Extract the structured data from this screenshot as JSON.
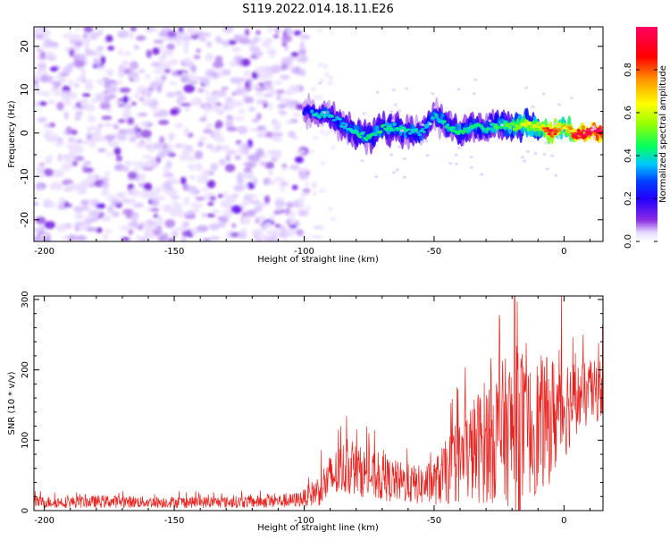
{
  "title": "S119.2022.014.18.11.E26",
  "chart_data": [
    {
      "type": "heatmap",
      "xlabel": "Height of straight line (km)",
      "ylabel": "Frequency (Hz)",
      "xlim": [
        -204,
        15
      ],
      "ylim": [
        -25,
        24.5
      ],
      "x_ticks": [
        -200,
        -150,
        -100,
        -50,
        0
      ],
      "y_ticks": [
        -20,
        -10,
        0,
        10,
        20
      ],
      "grid": false,
      "colorbar": {
        "label": "Normalized spectral amplitude",
        "range": [
          0.0,
          1.0
        ],
        "ticks": [
          0.0,
          0.2,
          0.4,
          0.6,
          0.8
        ],
        "tick_labels": [
          "0.0",
          "0.2",
          "0.4",
          "0.6",
          "0.8"
        ],
        "colormap": [
          "#e8ddff",
          "#8a2be2",
          "#3a00ff",
          "#0000ff",
          "#00c8ff",
          "#00ff60",
          "#9aff00",
          "#ffff00",
          "#ff9900",
          "#ff0000",
          "#ff0060"
        ]
      },
      "noise_region": {
        "x_range": [
          -204,
          -99
        ],
        "y_range": [
          -25,
          24.5
        ],
        "amplitude_range": [
          0.0,
          0.2
        ]
      },
      "signal_track": [
        {
          "x": -100,
          "y": 5,
          "amplitude": 0.15
        },
        {
          "x": -95,
          "y": 4.5,
          "amplitude": 0.3
        },
        {
          "x": -90,
          "y": 4,
          "amplitude": 0.3
        },
        {
          "x": -85,
          "y": 2,
          "amplitude": 0.3
        },
        {
          "x": -80,
          "y": 0,
          "amplitude": 0.35
        },
        {
          "x": -75,
          "y": -1,
          "amplitude": 0.35
        },
        {
          "x": -70,
          "y": 1,
          "amplitude": 0.35
        },
        {
          "x": -65,
          "y": 1.5,
          "amplitude": 0.35
        },
        {
          "x": -60,
          "y": 0.5,
          "amplitude": 0.35
        },
        {
          "x": -55,
          "y": 0,
          "amplitude": 0.3
        },
        {
          "x": -50,
          "y": 4,
          "amplitude": 0.3
        },
        {
          "x": -45,
          "y": 2,
          "amplitude": 0.35
        },
        {
          "x": -40,
          "y": 0,
          "amplitude": 0.35
        },
        {
          "x": -35,
          "y": 2,
          "amplitude": 0.35
        },
        {
          "x": -30,
          "y": 1,
          "amplitude": 0.35
        },
        {
          "x": -25,
          "y": 2,
          "amplitude": 0.4
        },
        {
          "x": -20,
          "y": 1.5,
          "amplitude": 0.45
        },
        {
          "x": -15,
          "y": 2,
          "amplitude": 0.55
        },
        {
          "x": -10,
          "y": 1.5,
          "amplitude": 0.55
        },
        {
          "x": -5,
          "y": 0,
          "amplitude": 0.9
        },
        {
          "x": 0,
          "y": 1.5,
          "amplitude": 0.6
        },
        {
          "x": 5,
          "y": -0.5,
          "amplitude": 0.9
        },
        {
          "x": 10,
          "y": 0.5,
          "amplitude": 0.95
        },
        {
          "x": 15,
          "y": 0.5,
          "amplitude": 0.95
        }
      ]
    },
    {
      "type": "line",
      "xlabel": "Height of straight line (km)",
      "ylabel": "SNR (10 * v/v)",
      "xlim": [
        -204,
        15
      ],
      "ylim": [
        0,
        305
      ],
      "x_ticks": [
        -200,
        -150,
        -100,
        -50,
        0
      ],
      "y_ticks": [
        0,
        100,
        200,
        300
      ],
      "grid": false,
      "line_color": "#e8231f",
      "series": [
        {
          "x": [
            -204,
            -190,
            -175,
            -160,
            -145,
            -130,
            -115,
            -105,
            -100,
            -95,
            -90,
            -85,
            -80,
            -75,
            -70,
            -65,
            -60,
            -55,
            -50,
            -45,
            -40,
            -35,
            -30,
            -25,
            -20,
            -18,
            -15,
            -10,
            -5,
            0,
            5,
            10,
            15
          ],
          "y": [
            12,
            12,
            13,
            12,
            12,
            12,
            13,
            14,
            18,
            28,
            45,
            60,
            58,
            50,
            45,
            42,
            38,
            36,
            40,
            55,
            70,
            85,
            100,
            110,
            115,
            120,
            110,
            120,
            130,
            150,
            160,
            165,
            175
          ],
          "spread": [
            8,
            8,
            9,
            8,
            8,
            8,
            9,
            10,
            12,
            22,
            35,
            38,
            36,
            34,
            32,
            30,
            28,
            28,
            32,
            48,
            60,
            75,
            90,
            100,
            110,
            180,
            90,
            100,
            90,
            80,
            50,
            45,
            45
          ]
        }
      ]
    }
  ]
}
